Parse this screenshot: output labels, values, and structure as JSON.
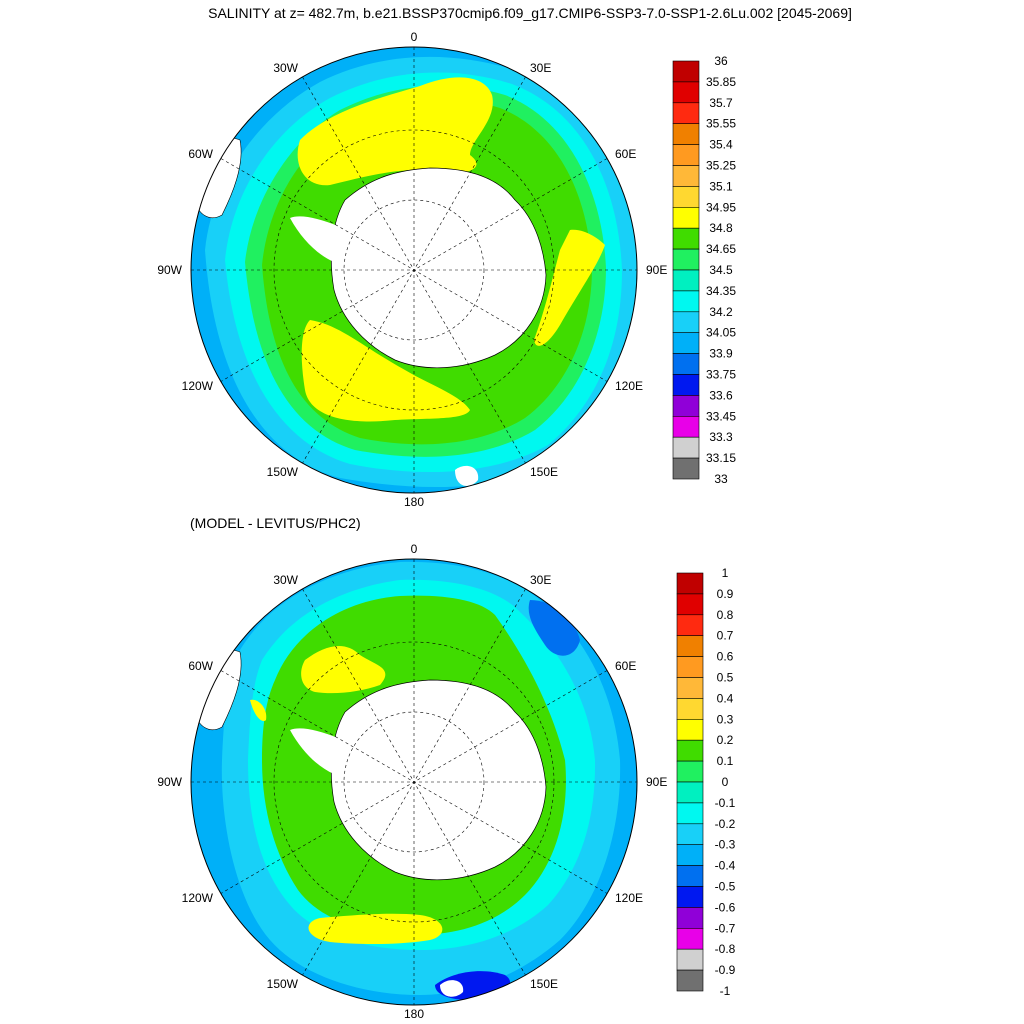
{
  "main_title": "SALINITY at z= 482.7m, b.e21.BSSP370cmip6.f09_g17.CMIP6-SSP3-7.0-SSP1-2.6Lu.002 [2045-2069]",
  "diff_title": "(MODEL - LEVITUS/PHC2)",
  "longitude_labels": {
    "top": "0",
    "e30": "30E",
    "e60": "60E",
    "e90": "90E",
    "e120": "120E",
    "e150": "150E",
    "bottom": "180",
    "w150": "150W",
    "w120": "120W",
    "w90": "90W",
    "w60": "60W",
    "w30": "30W"
  },
  "colorbar_top": {
    "labels": [
      "36",
      "35.85",
      "35.7",
      "35.55",
      "35.4",
      "35.25",
      "35.1",
      "34.95",
      "34.8",
      "34.65",
      "34.5",
      "34.35",
      "34.2",
      "34.05",
      "33.9",
      "33.75",
      "33.6",
      "33.45",
      "33.3",
      "33.15",
      "33"
    ],
    "colors": [
      "#C00000",
      "#E00000",
      "#FF2A10",
      "#F08000",
      "#FF9A20",
      "#FFB838",
      "#FFD830",
      "#FFFF00",
      "#40DC00",
      "#20F060",
      "#00F0C0",
      "#00F8F0",
      "#18D0F8",
      "#00B0F8",
      "#0070F0",
      "#0018F0",
      "#9000D8",
      "#E800E8",
      "#D0D0D0",
      "#707070"
    ]
  },
  "colorbar_bottom": {
    "labels": [
      "1",
      "0.9",
      "0.8",
      "0.7",
      "0.6",
      "0.5",
      "0.4",
      "0.3",
      "0.2",
      "0.1",
      "0",
      "-0.1",
      "-0.2",
      "-0.3",
      "-0.4",
      "-0.5",
      "-0.6",
      "-0.7",
      "-0.8",
      "-0.9",
      "-1"
    ],
    "colors": [
      "#C00000",
      "#E00000",
      "#FF2A10",
      "#F08000",
      "#FF9A20",
      "#FFB838",
      "#FFD830",
      "#FFFF00",
      "#40DC00",
      "#20F060",
      "#00F0C0",
      "#00F8F0",
      "#18D0F8",
      "#00B0F8",
      "#0070F0",
      "#0018F0",
      "#9000D8",
      "#E800E8",
      "#D0D0D0",
      "#707070"
    ]
  },
  "field_colors": {
    "ocean_outer": "#00B0F8",
    "ocean_mid": "#18D0F8",
    "ocean_cyan": "#00F8F0",
    "ocean_green": "#40DC00",
    "ocean_yellow": "#FFFF00",
    "ocean_deep": "#0070F0",
    "land": "#FFFFFF"
  }
}
